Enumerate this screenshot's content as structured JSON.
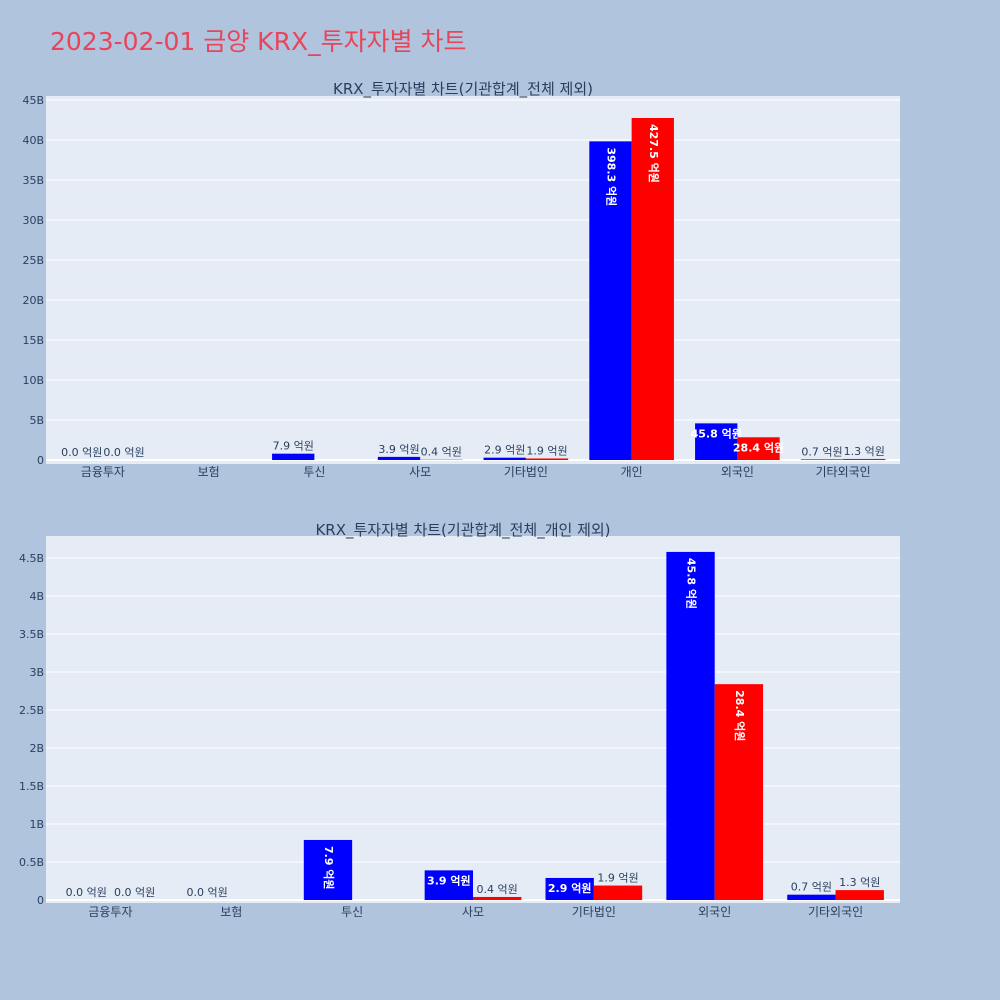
{
  "page": {
    "title": "2023-02-01 금양 KRX_투자자별 차트"
  },
  "colors": {
    "page_bg": "#b0c4de",
    "plot_bg": "#e5ecf6",
    "grid": "#ffffff",
    "title": "#e8445a",
    "text": "#2a3f5f",
    "series_blue": "#0000ff",
    "series_red": "#ff0000"
  },
  "chart_data": [
    {
      "type": "bar",
      "title": "KRX_투자자별 차트(기관합계_전체 제외)",
      "categories": [
        "금융투자",
        "보험",
        "투신",
        "사모",
        "기타법인",
        "개인",
        "외국인",
        "기타외국인"
      ],
      "series": [
        {
          "color": "#0000ff",
          "values": [
            0.0,
            null,
            790000000,
            390000000,
            290000000,
            39830000000,
            4580000000,
            70000000
          ],
          "labels": [
            "0.0 억원",
            "",
            "7.9 억원",
            "3.9 억원",
            "2.9 억원",
            "398.3 억원",
            "45.8 억원",
            "0.7 억원"
          ]
        },
        {
          "color": "#ff0000",
          "values": [
            0.0,
            null,
            null,
            40000000,
            190000000,
            42750000000,
            2840000000,
            130000000
          ],
          "labels": [
            "0.0 억원",
            "",
            "",
            "0.4 억원",
            "1.9 억원",
            "427.5 억원",
            "28.4 억원",
            "1.3 억원"
          ]
        }
      ],
      "yticks": [
        0,
        5000000000,
        10000000000,
        15000000000,
        20000000000,
        25000000000,
        30000000000,
        35000000000,
        40000000000,
        45000000000
      ],
      "ytick_labels": [
        "0",
        "5B",
        "10B",
        "15B",
        "20B",
        "25B",
        "30B",
        "35B",
        "40B",
        "45B"
      ],
      "ylim": [
        0,
        45400000000
      ],
      "grid": true
    },
    {
      "type": "bar",
      "title": "KRX_투자자별 차트(기관합계_전체_개인 제외)",
      "categories": [
        "금융투자",
        "보험",
        "투신",
        "사모",
        "기타법인",
        "외국인",
        "기타외국인"
      ],
      "series": [
        {
          "color": "#0000ff",
          "values": [
            0.0,
            0.0,
            790000000,
            390000000,
            290000000,
            4580000000,
            70000000
          ],
          "labels": [
            "0.0 억원",
            "0.0 억원",
            "7.9 억원",
            "3.9 억원",
            "2.9 억원",
            "45.8 억원",
            "0.7 억원"
          ]
        },
        {
          "color": "#ff0000",
          "values": [
            0.0,
            null,
            null,
            40000000,
            190000000,
            2840000000,
            130000000
          ],
          "labels": [
            "0.0 억원",
            "",
            "",
            "0.4 억원",
            "1.9 억원",
            "28.4 억원",
            "1.3 억원"
          ]
        }
      ],
      "yticks": [
        0,
        500000000,
        1000000000,
        1500000000,
        2000000000,
        2500000000,
        3000000000,
        3500000000,
        4000000000,
        4500000000
      ],
      "ytick_labels": [
        "0",
        "0.5B",
        "1B",
        "1.5B",
        "2B",
        "2.5B",
        "3B",
        "3.5B",
        "4B",
        "4.5B"
      ],
      "ylim": [
        0,
        4840000000
      ],
      "grid": true
    }
  ]
}
